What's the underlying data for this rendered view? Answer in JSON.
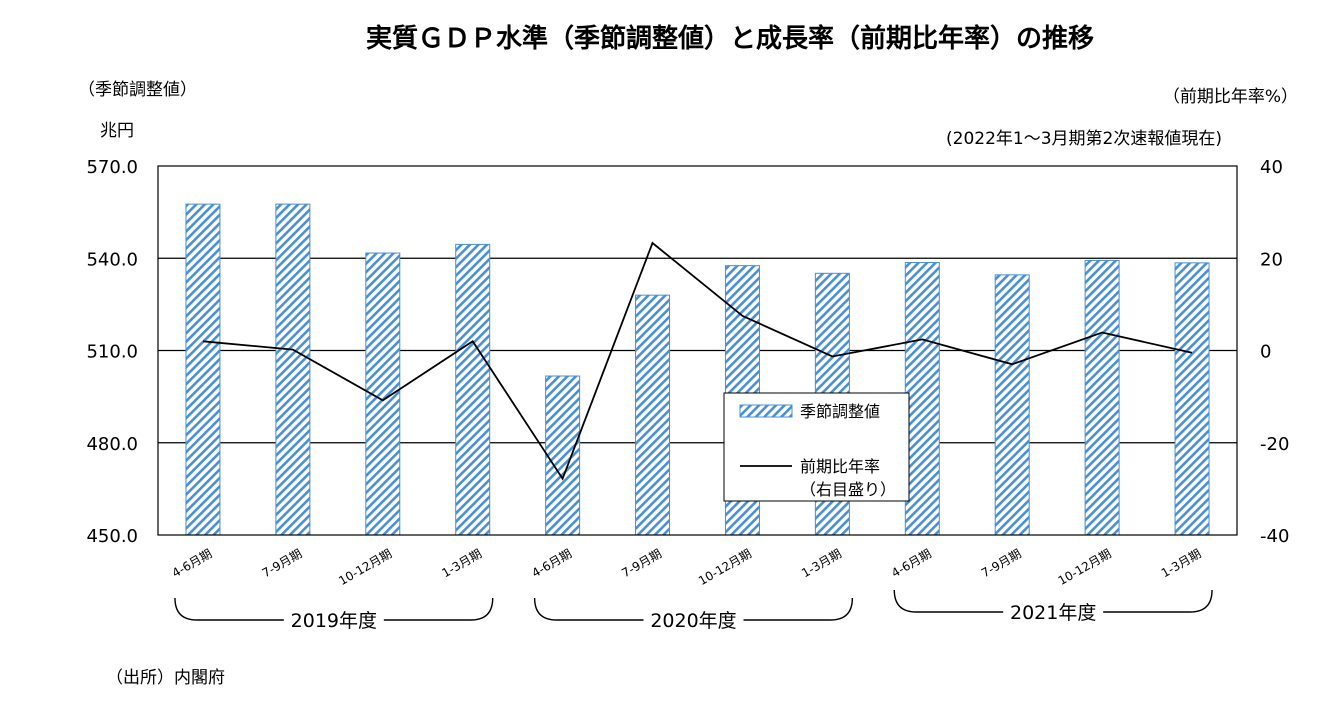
{
  "page": {
    "title": "実質ＧＤＰ水準（季節調整値）と成長率（前期比年率）の推移",
    "left_unit_note": "（季節調整値）",
    "left_unit": "兆円",
    "right_unit": "（前期比年率%）",
    "as_of_note": "(2022年1～3月期第2次速報値現在)",
    "source": "（出所）内閣府"
  },
  "chart_data": {
    "type": "bar",
    "categories": [
      "4-6月期",
      "7-9月期",
      "10-12月期",
      "1-3月期",
      "4-6月期",
      "7-9月期",
      "10-12月期",
      "1-3月期",
      "4-6月期",
      "7-9月期",
      "10-12月期",
      "1-3月期"
    ],
    "fiscal_years": [
      {
        "label": "2019年度",
        "quarters": 4
      },
      {
        "label": "2020年度",
        "quarters": 4
      },
      {
        "label": "2021年度",
        "quarters": 4
      }
    ],
    "series": [
      {
        "name": "季節調整値",
        "type": "bar",
        "axis": "left",
        "values": [
          557.6,
          557.6,
          541.7,
          544.5,
          501.7,
          528.0,
          537.6,
          535.1,
          538.6,
          534.6,
          539.3,
          538.5
        ]
      },
      {
        "name": "前期比年率",
        "name_note": "（右目盛り）",
        "type": "line",
        "axis": "right",
        "values": [
          2.0,
          0.2,
          -10.8,
          2.0,
          -27.8,
          23.3,
          7.5,
          -1.3,
          2.4,
          -3.0,
          3.9,
          -0.5
        ]
      }
    ],
    "y_left": {
      "min": 450.0,
      "max": 570.0,
      "ticks": [
        "450.0",
        "480.0",
        "510.0",
        "540.0",
        "570.0"
      ]
    },
    "y_right": {
      "min": -40,
      "max": 40,
      "ticks": [
        "-40",
        "-20",
        "0",
        "20",
        "40"
      ]
    },
    "grid": true,
    "legend_position": "center-right",
    "colors": {
      "bar_stripe": "#4a8fd4",
      "line": "#000000",
      "grid": "#000000"
    }
  }
}
